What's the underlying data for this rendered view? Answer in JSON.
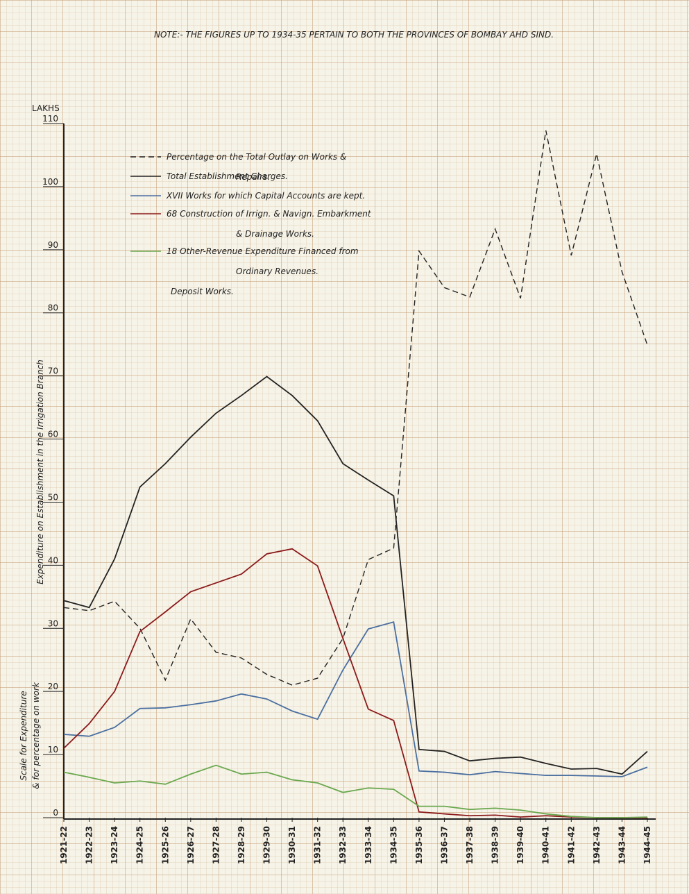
{
  "chart_data": {
    "type": "line",
    "title": "NOTE:- THE FIGURES UP TO 1934-35 PERTAIN TO BOTH THE PROVINCES OF BOMBAY AHD SIND.",
    "unit_label": "LAKHS",
    "y_axis_label": "Expenditure on Establishment in the Irrigation Branch",
    "y_axis_label_2": [
      "Scale for Expenditure",
      "& for percentage on work"
    ],
    "annotation": "Deposit Works.",
    "categories": [
      "1921-22",
      "1922-23",
      "1923-24",
      "1924-25",
      "1925-26",
      "1926-27",
      "1927-28",
      "1928-29",
      "1929-30",
      "1930-31",
      "1931-32",
      "1932-33",
      "1933-34",
      "1934-35",
      "1935-36",
      "1936-37",
      "1937-38",
      "1938-39",
      "1939-40",
      "1940-41",
      "1941-42",
      "1942-43",
      "1943-44",
      "1944-45"
    ],
    "series": [
      {
        "name": "Percentage on the Total Outlay on Works & Repairs.",
        "color": "#222222",
        "style": "dashed",
        "values": [
          33.3,
          32.8,
          34.3,
          30,
          21.8,
          31.5,
          26.2,
          25.3,
          22.7,
          21,
          22.1,
          28.4,
          40.9,
          42.7,
          89.8,
          84,
          82.5,
          93.3,
          82.3,
          108.9,
          89.1,
          105.2,
          86.5,
          74.9
        ]
      },
      {
        "name": "Total Establishment Charges.",
        "color": "#222222",
        "style": "solid",
        "values": [
          34.4,
          33.3,
          41,
          52.4,
          56.1,
          60.3,
          64.1,
          66.9,
          69.9,
          66.9,
          62.9,
          56.1,
          53.5,
          51,
          10.8,
          10.5,
          9,
          9.4,
          9.6,
          8.6,
          7.7,
          7.8,
          6.9,
          10.5
        ]
      },
      {
        "name": "XVII Works for which Capital Accounts are kept.",
        "color": "#4a6fa0",
        "style": "solid",
        "values": [
          13.2,
          12.9,
          14.3,
          17.3,
          17.4,
          17.9,
          18.5,
          19.6,
          18.8,
          16.9,
          15.6,
          23.4,
          29.9,
          31,
          7.4,
          7.2,
          6.8,
          7.3,
          7,
          6.7,
          6.7,
          6.6,
          6.5,
          8
        ]
      },
      {
        "name": "68 Construction of Irrign. & Navign. Embarkment & Drainage Works.",
        "color": "#8b1a1a",
        "style": "solid",
        "values": [
          11,
          14.9,
          20,
          29.5,
          32.6,
          35.8,
          37.2,
          38.6,
          41.8,
          42.6,
          39.9,
          28.4,
          17.2,
          15.4,
          0.9,
          0.6,
          0.3,
          0.4,
          0.1,
          0.3,
          0.1,
          0,
          0,
          0
        ]
      },
      {
        "name": "18 Other-Revenue Expenditure Financed from Ordinary Revenues.",
        "color": "#6aa84f",
        "style": "solid",
        "values": [
          7.2,
          6.4,
          5.5,
          5.8,
          5.3,
          6.9,
          8.3,
          6.9,
          7.2,
          6,
          5.5,
          4,
          4.7,
          4.5,
          1.8,
          1.8,
          1.3,
          1.5,
          1.2,
          0.6,
          0.2,
          0,
          0,
          0.1
        ]
      }
    ],
    "ylim": [
      0,
      110
    ],
    "yticks": [
      0,
      10,
      20,
      30,
      40,
      50,
      60,
      70,
      80,
      90,
      100,
      110
    ],
    "grid": true
  }
}
